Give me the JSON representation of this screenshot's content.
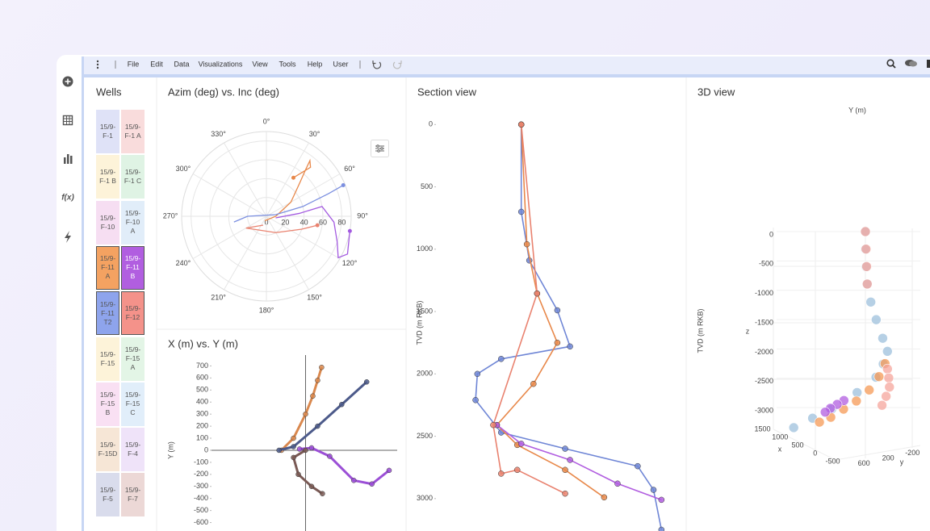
{
  "menu": [
    "File",
    "Edit",
    "Data",
    "Visualizations",
    "View",
    "Tools",
    "Help",
    "User"
  ],
  "sidebar_function": "f(x)",
  "wells": {
    "title": "Wells",
    "items": [
      {
        "label": "15/9-F-1",
        "color": "#dfe2f7"
      },
      {
        "label": "15/9-F-1 A",
        "color": "#f9dcdc"
      },
      {
        "label": "15/9-F-1 B",
        "color": "#fdf3d9"
      },
      {
        "label": "15/9-F-1 C",
        "color": "#dff3e4"
      },
      {
        "label": "15/9-F-10",
        "color": "#f6def2"
      },
      {
        "label": "15/9-F-10 A",
        "color": "#e1edf9"
      },
      {
        "label": "15/9-F-11 A",
        "color": "#f4a261",
        "selected": true
      },
      {
        "label": "15/9-F-11 B",
        "color": "#b15ee0",
        "selected": true
      },
      {
        "label": "15/9-F-11 T2",
        "color": "#8ea4ec",
        "selected": true
      },
      {
        "label": "15/9-F-12",
        "color": "#f4928a",
        "selected": true
      },
      {
        "label": "15/9-F-15",
        "color": "#fdf3d9"
      },
      {
        "label": "15/9-F-15 A",
        "color": "#e3f5e6"
      },
      {
        "label": "15/9-F-15 B",
        "color": "#f9e0f3"
      },
      {
        "label": "15/9-F-15 C",
        "color": "#e1eefa"
      },
      {
        "label": "15/9-F-15D",
        "color": "#f6e6d6"
      },
      {
        "label": "15/9-F-4",
        "color": "#efe3f9"
      },
      {
        "label": "15/9-F-5",
        "color": "#d9dcec"
      },
      {
        "label": "15/9-F-7",
        "color": "#ecd8d6"
      }
    ]
  },
  "chart_data": [
    {
      "type": "polar",
      "title": "Azim (deg) vs. Inc (deg)",
      "rlim": [
        0,
        90
      ],
      "rticks": [
        0,
        20,
        40,
        60,
        80
      ],
      "thetaticks": [
        {
          "value": 0,
          "label": "0°"
        },
        {
          "value": 30,
          "label": "30°"
        },
        {
          "value": 60,
          "label": "60°"
        },
        {
          "value": 90,
          "label": "90°"
        },
        {
          "value": 120,
          "label": "120°"
        },
        {
          "value": 150,
          "label": "150°"
        },
        {
          "value": 180,
          "label": "180°"
        },
        {
          "value": 210,
          "label": "210°"
        },
        {
          "value": 240,
          "label": "240°"
        },
        {
          "value": 270,
          "label": "270°"
        },
        {
          "value": 300,
          "label": "300°"
        },
        {
          "value": 330,
          "label": "330°"
        }
      ],
      "series": [
        {
          "color": "#e8884a",
          "theta": [
            200,
            90,
            60,
            45,
            40,
            38,
            42,
            35
          ],
          "r": [
            5,
            10,
            30,
            50,
            65,
            75,
            70,
            50
          ]
        },
        {
          "color": "#a35ae0",
          "theta": [
            100,
            85,
            80,
            95,
            110,
            120,
            115,
            100
          ],
          "r": [
            10,
            35,
            60,
            72,
            80,
            88,
            95,
            90
          ]
        },
        {
          "color": "#7b8fe0",
          "theta": [
            260,
            270,
            80,
            75,
            70,
            68
          ],
          "r": [
            35,
            20,
            10,
            40,
            70,
            88
          ]
        },
        {
          "color": "#e9826f",
          "theta": [
            200,
            240,
            150,
            110,
            100
          ],
          "r": [
            10,
            25,
            20,
            40,
            55
          ]
        }
      ]
    },
    {
      "type": "line",
      "title": "X (m) vs. Y (m)",
      "y_label": "Y (m)",
      "xlim": [
        -780,
        760
      ],
      "ylim": [
        -670,
        790
      ],
      "yticks": [
        700,
        600,
        500,
        400,
        300,
        200,
        100,
        0,
        -100,
        -200,
        -300,
        -400,
        -500,
        -600
      ],
      "series": [
        {
          "color": "#d9884e",
          "x": [
            -200,
            -100,
            0,
            60,
            100,
            133
          ],
          "y": [
            0,
            100,
            300,
            450,
            580,
            688
          ]
        },
        {
          "color": "#4c5a8a",
          "x": [
            -220,
            -100,
            100,
            300,
            507
          ],
          "y": [
            0,
            30,
            200,
            380,
            567
          ]
        },
        {
          "color": "#9b4fd6",
          "x": [
            -50,
            50,
            200,
            400,
            550,
            693
          ],
          "y": [
            10,
            20,
            -50,
            -250,
            -280,
            -167
          ]
        },
        {
          "color": "#7a5a55",
          "x": [
            0,
            -100,
            -60,
            50,
            140
          ],
          "y": [
            0,
            -60,
            -200,
            -300,
            -360
          ]
        }
      ]
    },
    {
      "type": "section",
      "title": "Section view",
      "y_label": "TVD (m RKB)",
      "xlim": [
        -700,
        1320
      ],
      "ylim": [
        -125,
        3260
      ],
      "y_reversed": true,
      "yticks": [
        0,
        500,
        1000,
        1500,
        2000,
        2500,
        3000
      ],
      "series": [
        {
          "color": "#6f86d6",
          "x": [
            0,
            0,
            66,
            296,
            400,
            -165,
            -360,
            -375,
            -165,
            360,
            955,
            1085,
            1150
          ],
          "y": [
            0,
            700,
            1090,
            1490,
            1780,
            1880,
            2000,
            2210,
            2470,
            2600,
            2740,
            2930,
            3250
          ]
        },
        {
          "color": "#e8884a",
          "x": [
            0,
            46,
            130,
            296,
            100,
            -200,
            -33,
            360,
            680
          ],
          "y": [
            0,
            960,
            1355,
            1750,
            2080,
            2410,
            2570,
            2770,
            2990
          ]
        },
        {
          "color": "#b15ee0",
          "x": [
            -200,
            0,
            400,
            790,
            1150
          ],
          "y": [
            2410,
            2560,
            2690,
            2880,
            3010
          ]
        },
        {
          "color": "#e9826f",
          "x": [
            0,
            130,
            -230,
            -165,
            -33,
            360
          ],
          "y": [
            0,
            1355,
            2410,
            2800,
            2770,
            2960
          ]
        }
      ]
    },
    {
      "type": "scatter3d",
      "title": "3D view",
      "y_label": "Y (m)",
      "z_label": "TVD (m RKB)",
      "z_axis_title": "z",
      "x_axis_title": "x",
      "y_axis_title": "y",
      "zticks": [
        0,
        -500,
        -1000,
        -1500,
        -2000,
        -2500,
        -3000
      ],
      "xticks": [
        1500,
        1000,
        500,
        0,
        -500
      ],
      "yticks": [
        600,
        200,
        -200
      ],
      "series": [
        {
          "color": "#9dc0dc",
          "x": [
            0,
            0,
            0,
            0,
            -50,
            -100,
            -200,
            -300,
            -300,
            -300,
            -280,
            -250,
            -220,
            -200
          ],
          "y": [
            0,
            0,
            -10,
            -30,
            -60,
            -120,
            -170,
            -190,
            -120,
            0,
            300,
            700,
            1000,
            1300
          ],
          "z": [
            0,
            -300,
            -600,
            -900,
            -1200,
            -1500,
            -1800,
            -2000,
            -2200,
            -2400,
            -2600,
            -2800,
            -2900,
            -3000
          ]
        },
        {
          "color": "#f59a55",
          "x": [
            -300,
            -300,
            -280,
            -260,
            -240,
            -220,
            -200
          ],
          "y": [
            -150,
            -50,
            100,
            300,
            500,
            700,
            875
          ],
          "z": [
            -2200,
            -2400,
            -2600,
            -2750,
            -2850,
            -2950,
            -3000
          ]
        },
        {
          "color": "#f6a59c",
          "x": [
            0,
            0,
            0,
            0,
            -300,
            -320,
            -340,
            -330,
            -300
          ],
          "y": [
            0,
            -10,
            -20,
            -30,
            -190,
            -200,
            -200,
            -150,
            -100
          ],
          "z": [
            0,
            -300,
            -600,
            -900,
            -2300,
            -2450,
            -2600,
            -2750,
            -2900
          ]
        },
        {
          "color": "#b15ee0",
          "x": [
            -250,
            -230,
            -210,
            -200
          ],
          "y": [
            500,
            600,
            700,
            780
          ],
          "z": [
            -2700,
            -2750,
            -2800,
            -2850
          ]
        }
      ]
    }
  ]
}
